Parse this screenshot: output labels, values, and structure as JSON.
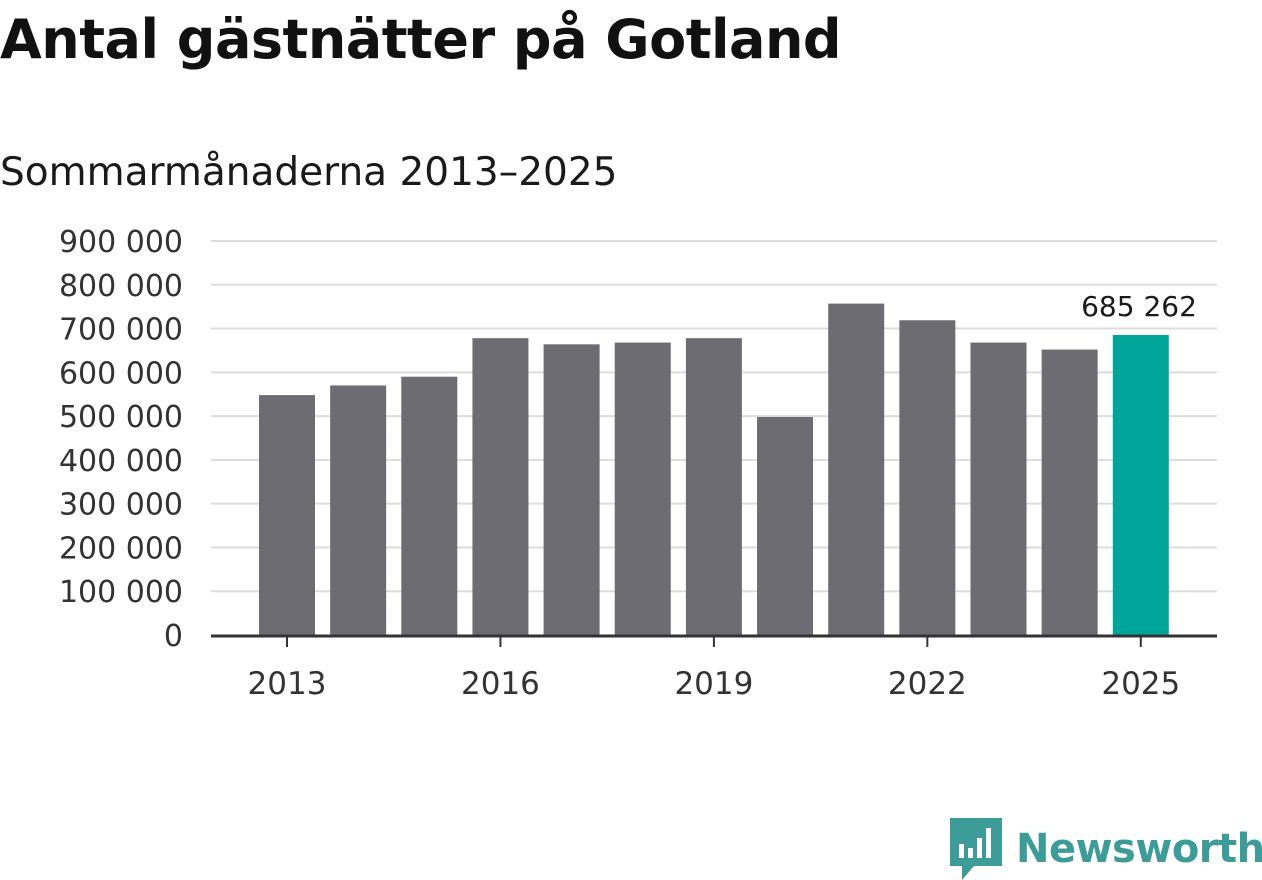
{
  "title": "Antal gästnätter på Gotland",
  "subtitle": "Sommarmånaderna 2013–2025",
  "brand": {
    "name": "Newsworthy",
    "icon": "newsworthy-logo-icon",
    "color": "#3d9c97"
  },
  "chart_data": {
    "type": "bar",
    "title": "Antal gästnätter på Gotland",
    "subtitle": "Sommarmånaderna 2013–2025",
    "categories": [
      "2013",
      "2014",
      "2015",
      "2016",
      "2017",
      "2018",
      "2019",
      "2020",
      "2021",
      "2022",
      "2023",
      "2024",
      "2025"
    ],
    "values": [
      548000,
      570000,
      590000,
      678000,
      664000,
      668000,
      678000,
      498000,
      757000,
      719000,
      668000,
      652000,
      685262
    ],
    "ylim": [
      0,
      900000
    ],
    "yticks": [
      0,
      100000,
      200000,
      300000,
      400000,
      500000,
      600000,
      700000,
      800000,
      900000
    ],
    "ytick_labels": [
      "0",
      "100 000",
      "200 000",
      "300 000",
      "400 000",
      "500 000",
      "600 000",
      "700 000",
      "800 000",
      "900 000"
    ],
    "xtick_labels": [
      "2013",
      "2016",
      "2019",
      "2022",
      "2025"
    ],
    "annotations": [
      {
        "category": "2025",
        "text": "685 262"
      }
    ],
    "bar_color": "#6d6c72",
    "highlight_color": "#00a59a",
    "highlight_category": "2025",
    "grid": true,
    "legend": "none"
  }
}
